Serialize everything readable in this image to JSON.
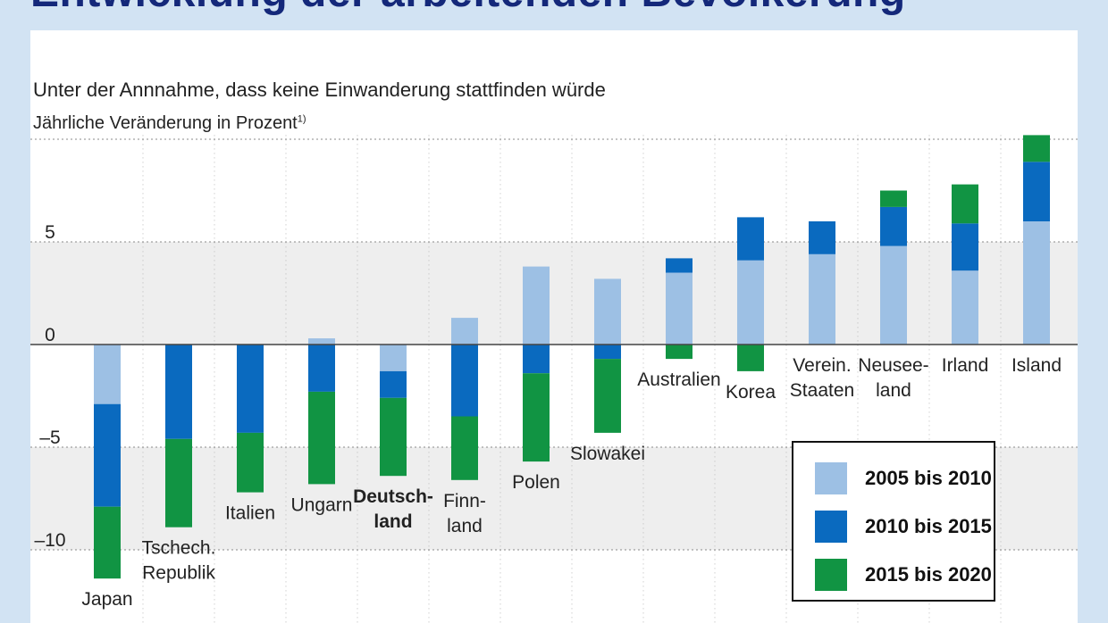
{
  "headline": "Entwicklung der arbeitenden Bevölkerung",
  "subtitle": "Unter der Annnahme, dass keine Einwanderung stattfinden würde",
  "unit_label": "Jährliche Veränderung in Prozent",
  "unit_footnote": "1)",
  "colors": {
    "s2010": "#9dc0e4",
    "s2015": "#0a6abf",
    "s2020": "#119443",
    "band": "#eeeeee",
    "panel": "#ffffff",
    "background": "#d2e3f3"
  },
  "chart_data": {
    "type": "bar",
    "stacked": true,
    "title": "Entwicklung der arbeitenden Bevölkerung",
    "subtitle": "Unter der Annnahme, dass keine Einwanderung stattfinden würde",
    "ylabel": "Jährliche Veränderung in Prozent",
    "ylim": [
      -11.6,
      10.5
    ],
    "yticks": [
      5,
      0,
      -5,
      -10
    ],
    "ytick_labels": [
      "5",
      "0",
      "–5",
      "–10"
    ],
    "grid": true,
    "legend_position": "bottom-right",
    "categories": [
      {
        "lines": [
          "Japan"
        ],
        "bold": false
      },
      {
        "lines": [
          "Tschech.",
          "Republik"
        ],
        "bold": false
      },
      {
        "lines": [
          "Italien"
        ],
        "bold": false
      },
      {
        "lines": [
          "Ungarn"
        ],
        "bold": false
      },
      {
        "lines": [
          "Deutsch-",
          "land"
        ],
        "bold": true
      },
      {
        "lines": [
          "Finn-",
          "land"
        ],
        "bold": false
      },
      {
        "lines": [
          "Polen"
        ],
        "bold": false
      },
      {
        "lines": [
          "Slowakei"
        ],
        "bold": false
      },
      {
        "lines": [
          "Australien"
        ],
        "bold": false
      },
      {
        "lines": [
          "Korea"
        ],
        "bold": false
      },
      {
        "lines": [
          "Verein.",
          "Staaten"
        ],
        "bold": false
      },
      {
        "lines": [
          "Neusee-",
          "land"
        ],
        "bold": false
      },
      {
        "lines": [
          "Irland"
        ],
        "bold": false
      },
      {
        "lines": [
          "Island"
        ],
        "bold": false
      }
    ],
    "series": [
      {
        "name": "2005 bis 2010",
        "color": "#9dc0e4",
        "values": [
          -2.9,
          0.0,
          0.0,
          0.3,
          -1.3,
          1.3,
          3.8,
          3.2,
          3.5,
          4.1,
          4.4,
          4.8,
          3.6,
          6.0
        ]
      },
      {
        "name": "2010 bis 2015",
        "color": "#0a6abf",
        "values": [
          -5.0,
          -4.6,
          -4.3,
          -2.3,
          -1.3,
          -3.5,
          -1.4,
          -0.7,
          0.7,
          2.1,
          1.6,
          1.9,
          2.3,
          2.9
        ]
      },
      {
        "name": "2015 bis 2020",
        "color": "#119443",
        "values": [
          -3.5,
          -4.3,
          -2.9,
          -4.5,
          -3.8,
          -3.1,
          -4.3,
          -3.6,
          -0.7,
          -1.3,
          0.0,
          0.8,
          1.9,
          1.3
        ]
      }
    ]
  }
}
